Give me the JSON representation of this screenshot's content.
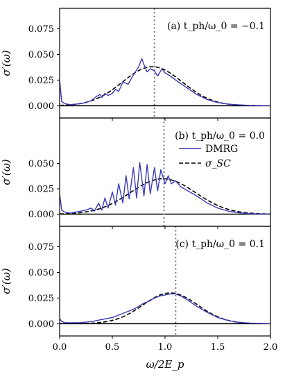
{
  "chart_data": {
    "type": "line",
    "xlabel": "ω/2E_p",
    "ylabel": "σ′(ω)",
    "xlim": [
      0.0,
      2.0
    ],
    "x_ticks": [
      "0.0",
      "0.5",
      "1.0",
      "1.5",
      "2.0"
    ],
    "grid": false,
    "legend": {
      "placement": "right, middle panel",
      "entries": [
        {
          "label": "DMRG",
          "color": "#3a3ab8",
          "style": "solid"
        },
        {
          "label": "σ_SC",
          "color": "#000000",
          "style": "dashed"
        }
      ]
    },
    "panels": [
      {
        "label": "(a) t_ph/ω_0 = −0.1",
        "ylim": [
          -0.012,
          0.095
        ],
        "y_ticks": [
          "0.000",
          "0.025",
          "0.050",
          "0.075"
        ],
        "vline_x": 0.9,
        "sc_amplitude": 0.038,
        "sc_center": 0.88,
        "sc_width": 0.285,
        "series": [
          {
            "name": "DMRG",
            "x": [
              0.0,
              0.02,
              0.05,
              0.1,
              0.15,
              0.2,
              0.25,
              0.3,
              0.35,
              0.38,
              0.4,
              0.43,
              0.46,
              0.5,
              0.53,
              0.56,
              0.6,
              0.65,
              0.7,
              0.75,
              0.78,
              0.8,
              0.83,
              0.86,
              0.9,
              0.93,
              0.97,
              1.0,
              1.05,
              1.1,
              1.2,
              1.3,
              1.4,
              1.5,
              1.6,
              1.7,
              1.8,
              1.9,
              2.0
            ],
            "values": [
              0.025,
              0.004,
              0.002,
              0.001,
              0.0015,
              0.002,
              0.003,
              0.005,
              0.009,
              0.011,
              0.008,
              0.012,
              0.01,
              0.012,
              0.016,
              0.014,
              0.023,
              0.021,
              0.03,
              0.038,
              0.046,
              0.04,
              0.033,
              0.036,
              0.034,
              0.029,
              0.036,
              0.032,
              0.029,
              0.025,
              0.018,
              0.011,
              0.006,
              0.003,
              0.0015,
              0.0008,
              0.0003,
              0.0001,
              0.0
            ]
          }
        ]
      },
      {
        "label": "(b) t_ph/ω_0 = 0.0",
        "ylim": [
          -0.012,
          0.095
        ],
        "y_ticks": [
          "0.000",
          "0.025",
          "0.050"
        ],
        "vline_x": 0.99,
        "sc_amplitude": 0.035,
        "sc_center": 0.98,
        "sc_width": 0.31,
        "series": [
          {
            "name": "DMRG",
            "x": [
              0.0,
              0.02,
              0.05,
              0.1,
              0.15,
              0.2,
              0.25,
              0.3,
              0.33,
              0.37,
              0.4,
              0.43,
              0.46,
              0.5,
              0.53,
              0.56,
              0.6,
              0.63,
              0.66,
              0.7,
              0.73,
              0.76,
              0.8,
              0.83,
              0.86,
              0.9,
              0.93,
              0.96,
              1.0,
              1.03,
              1.06,
              1.1,
              1.15,
              1.2,
              1.3,
              1.4,
              1.5,
              1.6,
              1.7,
              1.8,
              1.9,
              2.0
            ],
            "values": [
              0.02,
              0.004,
              0.002,
              0.001,
              0.002,
              0.003,
              0.004,
              0.006,
              0.003,
              0.011,
              0.004,
              0.016,
              0.006,
              0.022,
              0.009,
              0.03,
              0.011,
              0.038,
              0.015,
              0.046,
              0.016,
              0.051,
              0.018,
              0.049,
              0.02,
              0.046,
              0.023,
              0.044,
              0.03,
              0.038,
              0.03,
              0.033,
              0.027,
              0.024,
              0.018,
              0.011,
              0.006,
              0.003,
              0.0013,
              0.0005,
              0.0002,
              0.0
            ]
          }
        ]
      },
      {
        "label": "(c) t_ph/ω_0 = 0.1",
        "ylim": [
          -0.012,
          0.095
        ],
        "y_ticks": [
          "0.000",
          "0.025",
          "0.050",
          "0.075"
        ],
        "vline_x": 1.1,
        "sc_amplitude": 0.03,
        "sc_center": 1.05,
        "sc_width": 0.26,
        "series": [
          {
            "name": "DMRG",
            "x": [
              0.0,
              0.02,
              0.05,
              0.1,
              0.2,
              0.3,
              0.4,
              0.5,
              0.6,
              0.7,
              0.75,
              0.8,
              0.85,
              0.9,
              0.95,
              1.0,
              1.05,
              1.1,
              1.15,
              1.2,
              1.3,
              1.4,
              1.5,
              1.6,
              1.7,
              1.8,
              1.9,
              2.0
            ],
            "values": [
              0.005,
              0.002,
              0.001,
              0.0008,
              0.001,
              0.002,
              0.004,
              0.006,
              0.01,
              0.014,
              0.017,
              0.02,
              0.022,
              0.025,
              0.027,
              0.028,
              0.029,
              0.029,
              0.027,
              0.024,
              0.017,
              0.011,
              0.006,
              0.003,
              0.0012,
              0.0005,
              0.0002,
              0.0
            ]
          }
        ]
      }
    ]
  }
}
